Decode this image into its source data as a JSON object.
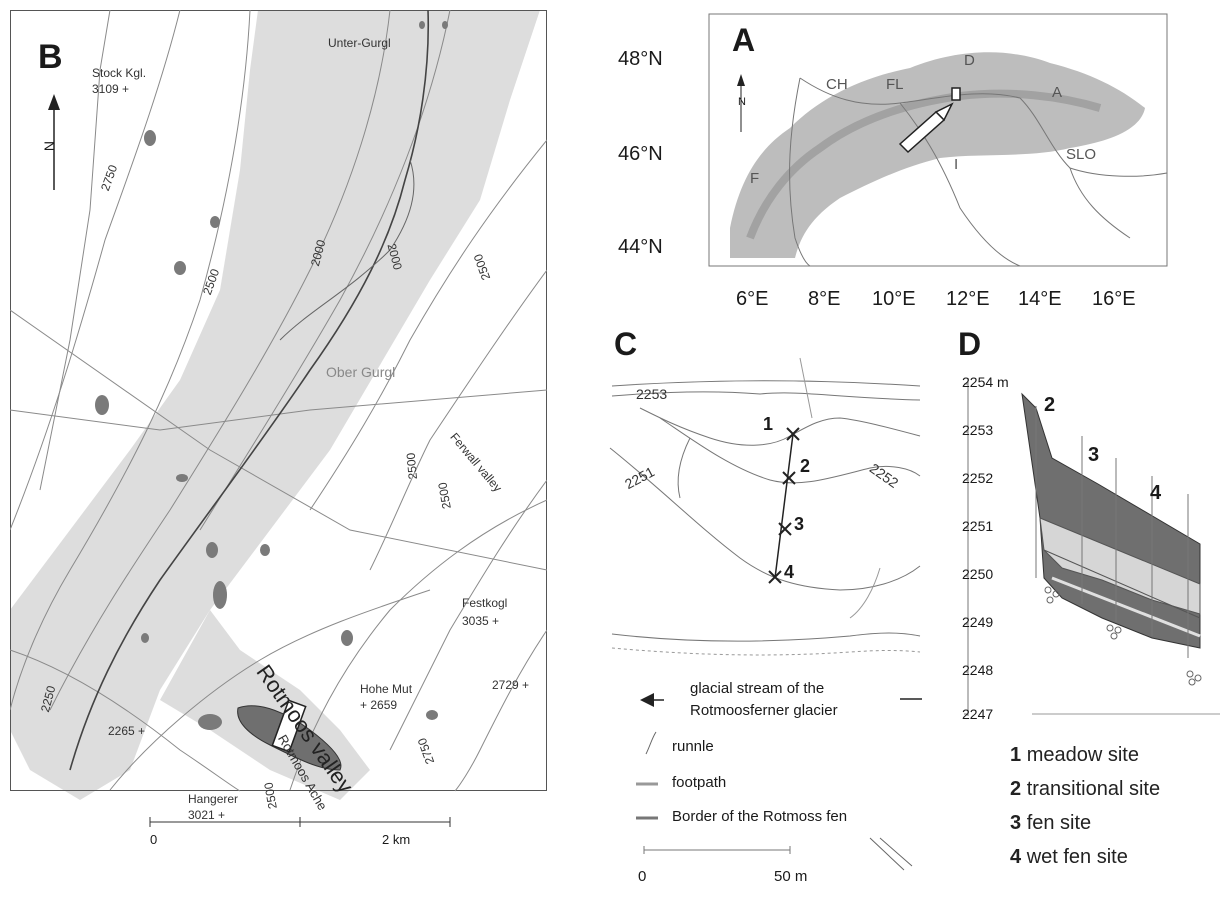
{
  "panel_b": {
    "letter": "B",
    "north": "N",
    "peaks": {
      "stock_name": "Stock Kgl.",
      "stock_elev": "3109 +",
      "festkogl_name": "Festkogl",
      "festkogl_elev": "3035 +",
      "hohe_mut_name": "Hohe Mut",
      "hohe_mut_elev": "+ 2659",
      "elev_2729": "2729 +",
      "elev_2265": "2265 +",
      "hangerer_name": "Hangerer",
      "hangerer_elev": "3021 +"
    },
    "places": {
      "unter_gurgl": "Unter-Gurgl",
      "ober_gurgl": "Ober Gurgl",
      "ferwall": "Ferwall valley",
      "rotmoos_valley": "Rotmoos valley",
      "rotmoos_ache": "Rotmoos Ache"
    },
    "contours": {
      "c2750_left": "2750",
      "c2500_left": "2500",
      "c2000_a": "2000",
      "c2000_b": "2000",
      "c2250": "2250",
      "c2500_right": "2500",
      "c2500_mid": "2500",
      "c2500_low": "2500",
      "c2750_low": "2750",
      "c2500_bottom": "2500"
    },
    "scale_0": "0",
    "scale_2": "2 km"
  },
  "panel_a": {
    "letter": "A",
    "north": "N",
    "lat_labels": [
      "48°N",
      "46°N",
      "44°N"
    ],
    "lon_labels": [
      "6°E",
      "8°E",
      "10°E",
      "12°E",
      "14°E",
      "16°E"
    ],
    "countries": {
      "ch": "CH",
      "fl": "FL",
      "d": "D",
      "a": "A",
      "f": "F",
      "i": "I",
      "slo": "SLO"
    }
  },
  "panel_c": {
    "letter": "C",
    "contours": {
      "c2253": "2253",
      "c2252": "2252",
      "c2251": "2251"
    },
    "sites": [
      "1",
      "2",
      "3",
      "4"
    ],
    "legend": {
      "stream_line1": "glacial stream of the",
      "stream_line2": "Rotmoosferner glacier",
      "runnle": "runnle",
      "footpath": "footpath",
      "border": "Border of the Rotmoss fen"
    },
    "scale_0": "0",
    "scale_50": "50 m"
  },
  "panel_d": {
    "letter": "D",
    "y_ticks": [
      "2254 m",
      "2253",
      "2252",
      "2251",
      "2250",
      "2249",
      "2248",
      "2247"
    ],
    "profile_labels": [
      "2",
      "3",
      "4"
    ]
  },
  "sites_legend": [
    {
      "num": "1",
      "text": "meadow site"
    },
    {
      "num": "2",
      "text": "transitional site"
    },
    {
      "num": "3",
      "text": "fen site"
    },
    {
      "num": "4",
      "text": "wet fen site"
    }
  ],
  "colors": {
    "valley_fill": "#dddddd",
    "relief": "#bdbdbd",
    "peat": "#6f6f6f",
    "line": "#7a7a7a"
  }
}
